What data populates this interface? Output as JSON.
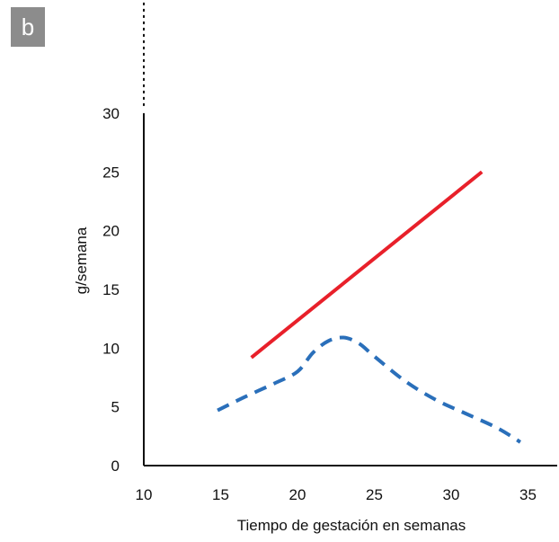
{
  "panel_label": "b",
  "chart_data": {
    "type": "line",
    "title": "",
    "xlabel": "Tiempo de gestación en semanas",
    "ylabel": "g/semana",
    "xlim": [
      10,
      36
    ],
    "ylim": [
      0,
      30
    ],
    "x_ticks": [
      10,
      15,
      20,
      25,
      30,
      35
    ],
    "y_ticks": [
      0,
      5,
      10,
      15,
      20,
      25,
      30
    ],
    "y_axis_dotted_extension": true,
    "grid": false,
    "legend": "none",
    "series": [
      {
        "style": "solid",
        "color": "#e8202a",
        "x": [
          17,
          32
        ],
        "y": [
          9.2,
          25
        ]
      },
      {
        "style": "dashed",
        "color": "#2a6fba",
        "x": [
          14.8,
          16.5,
          18.5,
          20,
          21,
          22,
          23,
          24,
          25,
          27,
          29,
          31,
          33,
          34.5
        ],
        "y": [
          4.7,
          5.8,
          7,
          8,
          9.6,
          10.6,
          10.9,
          10.4,
          9.3,
          7.2,
          5.6,
          4.4,
          3.2,
          2
        ]
      }
    ]
  }
}
